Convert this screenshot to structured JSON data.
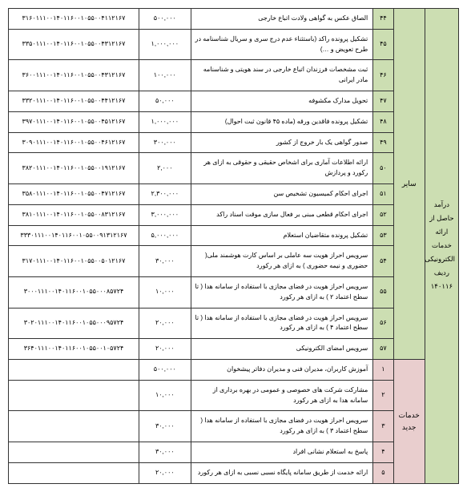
{
  "colors": {
    "green": "#ccdeb2",
    "pink": "#e9cece",
    "border": "#333333"
  },
  "col_widths_pct": [
    7.5,
    7,
    4.5,
    40.5,
    11.5,
    29
  ],
  "vertical_header": "درآمد حاصل از ارائه خدمات الکترونیکی ردیف ۱۴۰۱۱۶",
  "groups": [
    {
      "label": "سایر",
      "bg": "green",
      "rows": [
        {
          "n": "۴۴",
          "desc": "الصاق عکس به گواهی ولادت اتباع خارجی",
          "fee": "۵۰۰,۰۰۰",
          "code": "۳۱۶۰۱۱۱۰۰۱۴۰۱۱۶۰۰۱۰۵۵۰۰۴۱۱۲۱۶۷"
        },
        {
          "n": "۴۵",
          "desc": "تشکیل پرونده راکد (باستثناء عدم درج سری و سریال شناسنامه در طرح تعویض و …)",
          "fee": "۱,۰۰۰,۰۰۰",
          "code": "۳۳۵۰۱۱۱۰۰۱۴۰۱۱۶۰۰۱۰۵۵۰۰۴۳۱۲۱۶۷"
        },
        {
          "n": "۴۶",
          "desc": "ثبت مشخصات فرزندان اتباع خارجی در سند هویتی و شناسنامه مادر ایرانی",
          "fee": "۱۰۰,۰۰۰",
          "code": "۳۶۰۰۱۱۱۰۰۱۴۰۱۱۶۰۰۱۰۵۵۰۰۴۳۱۲۱۶۷"
        },
        {
          "n": "۴۷",
          "desc": "تحویل مدارک مکشوفه",
          "fee": "۵۰,۰۰۰",
          "code": "۳۳۲۰۱۱۱۰۰۱۴۰۱۱۶۰۰۱۰۵۵۰۰۴۴۱۲۱۶۷"
        },
        {
          "n": "۴۸",
          "desc": "تشکیل پرونده فاقدین ورقه (ماده ۴۵ قانون ثبت احوال)",
          "fee": "۱,۰۰۰,۰۰۰",
          "code": "۳۹۷۰۱۱۱۰۰۱۴۰۱۱۶۰۰۱۰۵۵۰۰۴۵۱۲۱۶۷"
        },
        {
          "n": "۴۹",
          "desc": "صدور گواهی یک بار خروج از کشور",
          "fee": "۳۰۰,۰۰۰",
          "code": "۳۰۹۰۱۱۱۰۰۱۴۰۱۱۶۰۰۱۰۵۵۰۰۴۶۱۲۱۶۷"
        },
        {
          "n": "۵۰",
          "desc": "ارائه اطلاعات آماری برای اشخاص حقیقی و حقوقی به ازای هر رکورد و پردازش",
          "fee": "۲,۰۰۰",
          "code": "۳۸۲۰۱۱۱۰۰۱۴۰۱۱۶۰۰۱۰۵۵۰۰۱۹۱۲۱۶۷"
        },
        {
          "n": "۵۱",
          "desc": "اجرای احکام کمیسیون تشخیص سن",
          "fee": "۲,۳۰۰,۰۰۰",
          "code": "۳۵۸۰۱۱۱۰۰۱۴۰۱۱۶۰۰۱۰۵۵۰۰۴۷۱۲۱۶۷"
        },
        {
          "n": "۵۲",
          "desc": "اجرای احکام قطعی مبنی بر فعال سازی موقت اسناد راکد",
          "fee": "۳,۰۰۰,۰۰۰",
          "code": "۳۸۱۰۱۱۱۰۰۱۴۰۱۱۶۰۰۱۰۵۵۰۰۸۳۱۲۱۶۷"
        },
        {
          "n": "۵۳",
          "desc": "تشکیل پرونده متقاضیان استعلام",
          "fee": "۵,۰۰۰,۰۰۰",
          "code": "۳۳۳۰۱۱۱۰۰۱۴۰۱۱۶۰۰۱۰۵۵۰۰۹۱۳۱۲۱۶۷"
        },
        {
          "n": "۵۴",
          "desc": "سرویس احراز هویت سه عاملی بر اساس کارت هوشمند ملی( حضوری و نیمه حضوری ) به ازای هر رکورد",
          "fee": "۳۰,۰۰۰",
          "code": "۳۱۷۰۱۱۱۰۰۱۴۰۱۱۶۰۰۱۰۵۵۰۰۵۰۱۲۱۶۷"
        },
        {
          "n": "۵۵",
          "desc": "سرویس احراز هویت در فضای مجازی با استفاده از سامانه هدا ( تا سطح اعتماد ۲ ) به ازای هر رکورد",
          "fee": "۱۰,۰۰۰",
          "code": "۳۰۰۰۱۱۱۰۰۱۴۰۱۱۶۰۰۱۰۵۵۰۰۰۸۵۷۲۴"
        },
        {
          "n": "۵۶",
          "desc": "سرویس احراز هویت در فضای مجازی با استفاده از سامانه هدا ( تا سطح اعتماد ۴ ) به ازای هر رکورد",
          "fee": "۲۰,۰۰۰",
          "code": "۳۰۲۰۱۱۱۰۰۱۴۰۱۱۶۰۰۱۰۵۵۰۰۰۹۵۷۲۴"
        },
        {
          "n": "۵۷",
          "desc": "سرویس امضای الکترونیکی",
          "fee": "۲۰,۰۰۰",
          "code": "۳۶۴۰۱۱۱۰۰۱۴۰۱۱۶۰۰۱۰۵۵۰۰۱۰۵۷۲۴"
        }
      ]
    },
    {
      "label": "خدمات جدید",
      "bg": "pink",
      "rows": [
        {
          "n": "۱",
          "desc": "آموزش کاربران، مدیران فنی و مدیران دفاتر پیشخوان",
          "fee": "۵۰۰,۰۰۰",
          "code": ""
        },
        {
          "n": "۲",
          "desc": "مشارکت شرکت های خصوصی و عمومی در بهره برداری از سامانه هدا به ازای هر رکورد",
          "fee": "۱۰,۰۰۰",
          "code": ""
        },
        {
          "n": "۳",
          "desc": "سرویس احراز هویت در فضای مجازی با استفاده از سامانه هدا ( سطح اعتماد ۳ ) به ازای هر رکورد",
          "fee": "۳۰,۰۰۰",
          "code": ""
        },
        {
          "n": "۴",
          "desc": "پاسخ به استعلام نشانی افراد",
          "fee": "۳۰,۰۰۰",
          "code": ""
        },
        {
          "n": "۵",
          "desc": "ارائه خدمت از طریق سامانه پایگاه نسبی نسبی به ازای هر رکورد",
          "fee": "۲۰,۰۰۰",
          "code": ""
        }
      ]
    }
  ]
}
